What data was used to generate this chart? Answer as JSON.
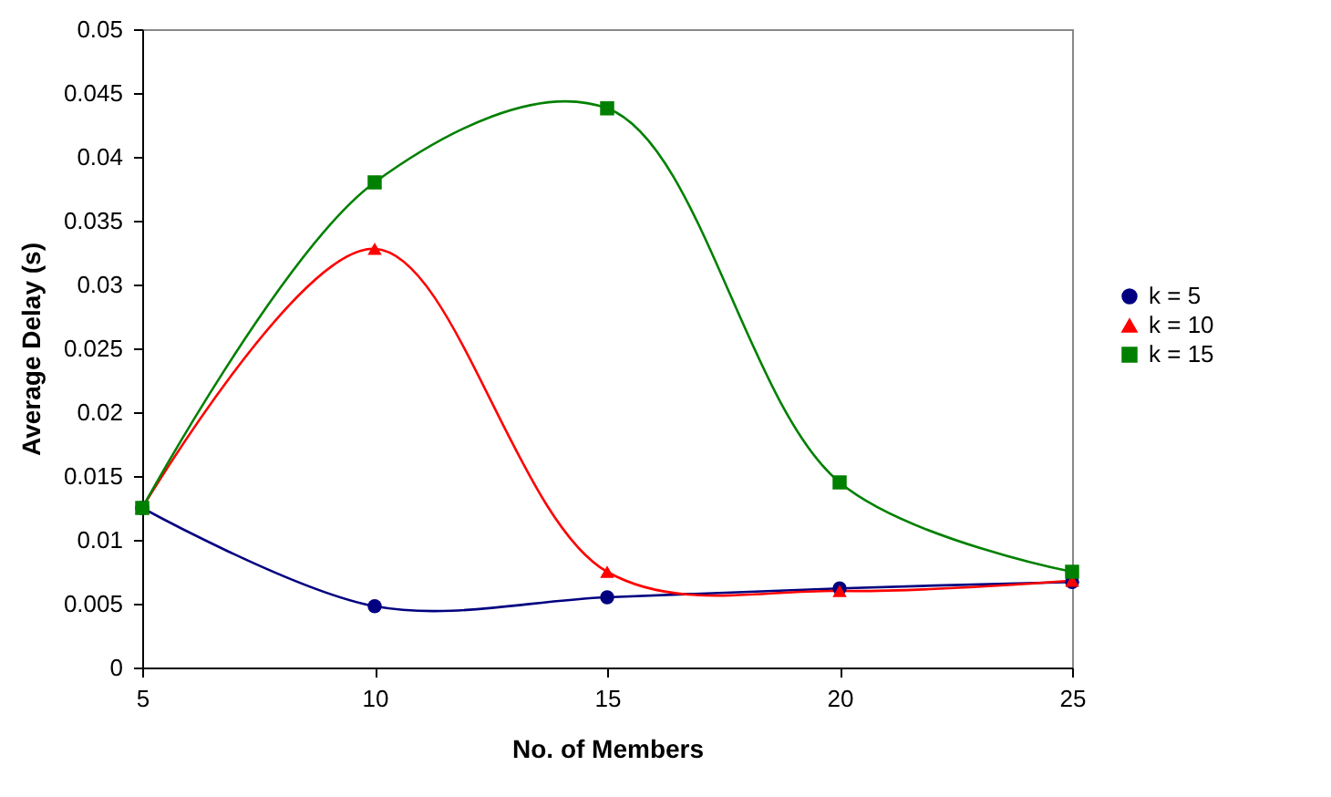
{
  "chart_data": {
    "type": "line",
    "xlabel": "No. of Members",
    "ylabel": "Average Delay (s)",
    "x": [
      5,
      10,
      15,
      20,
      25
    ],
    "xlim": [
      5,
      25
    ],
    "xticks": [
      5,
      10,
      15,
      20,
      25
    ],
    "ylim": [
      0,
      0.05
    ],
    "yticks": [
      0,
      0.005,
      0.01,
      0.015,
      0.02,
      0.025,
      0.03,
      0.035,
      0.04,
      0.045,
      0.05
    ],
    "grid": false,
    "legend": "right",
    "line_style": "solid",
    "series": [
      {
        "name": "k = 5",
        "color": "#000080",
        "marker": "circle",
        "values": [
          0.0125,
          0.0048,
          0.0055,
          0.0062,
          0.0067
        ]
      },
      {
        "name": "k = 10",
        "color": "#ff0000",
        "marker": "triangle",
        "values": [
          0.0125,
          0.0328,
          0.0075,
          0.006,
          0.0068
        ]
      },
      {
        "name": "k = 15",
        "color": "#008000",
        "marker": "square",
        "values": [
          0.0125,
          0.038,
          0.0438,
          0.0145,
          0.0075
        ]
      }
    ]
  }
}
